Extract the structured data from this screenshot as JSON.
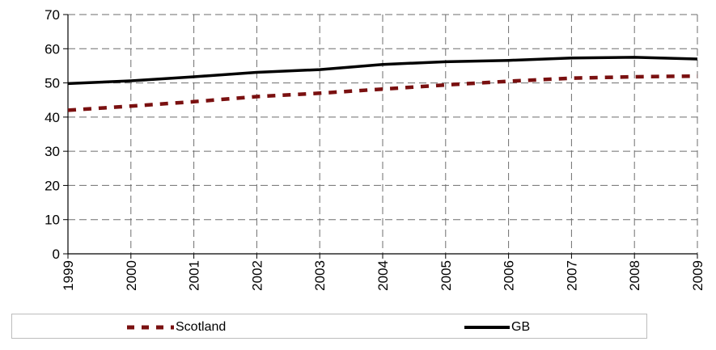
{
  "chart_data": {
    "type": "line",
    "title": "",
    "xlabel": "",
    "ylabel": "",
    "x": [
      "1999",
      "2000",
      "2001",
      "2002",
      "2003",
      "2004",
      "2005",
      "2006",
      "2007",
      "2008",
      "2009"
    ],
    "ylim": [
      0,
      70
    ],
    "yticks": [
      0,
      10,
      20,
      30,
      40,
      50,
      60,
      70
    ],
    "grid": true,
    "legend_placement": "bottom",
    "series": [
      {
        "name": "Scotland",
        "values": [
          42.0,
          43.2,
          44.5,
          46.0,
          47.0,
          48.2,
          49.4,
          50.5,
          51.4,
          51.8,
          52.0
        ],
        "color": "#7a1010",
        "style": "dashed"
      },
      {
        "name": "GB",
        "values": [
          49.8,
          50.6,
          51.8,
          53.1,
          53.9,
          55.4,
          56.2,
          56.6,
          57.3,
          57.5,
          57.0
        ],
        "color": "#000000",
        "style": "solid"
      }
    ]
  }
}
